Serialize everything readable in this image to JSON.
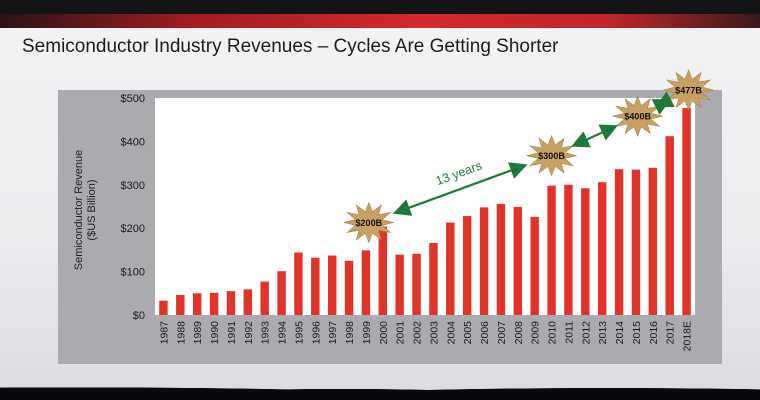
{
  "slide": {
    "title": "Semiconductor Industry Revenues – Cycles Are Getting Shorter"
  },
  "chart_data": {
    "type": "bar",
    "ylabel": "Semiconductor Revenue\n($US Billion)",
    "ylim": [
      0,
      500
    ],
    "y_ticks": [
      "$0",
      "$100",
      "$200",
      "$300",
      "$400",
      "$500"
    ],
    "grid": false,
    "bar_color": "#e0342b",
    "categories": [
      "1987",
      "1988",
      "1989",
      "1990",
      "1991",
      "1992",
      "1993",
      "1994",
      "1995",
      "1996",
      "1997",
      "1998",
      "1999",
      "2000",
      "2001",
      "2002",
      "2003",
      "2004",
      "2005",
      "2006",
      "2007",
      "2008",
      "2009",
      "2010",
      "2011",
      "2012",
      "2013",
      "2014",
      "2015",
      "2016",
      "2017",
      "2018E"
    ],
    "values": [
      33,
      46,
      50,
      51,
      55,
      59,
      77,
      101,
      144,
      132,
      137,
      125,
      149,
      204,
      139,
      141,
      166,
      213,
      228,
      248,
      256,
      249,
      226,
      298,
      300,
      292,
      306,
      336,
      335,
      339,
      412,
      477
    ],
    "callouts": [
      {
        "label": "$200B",
        "category": "2000"
      },
      {
        "label": "$300B",
        "category": "2010"
      },
      {
        "label": "$400B",
        "category": "2017"
      },
      {
        "label": "$477B",
        "category": "2018E"
      }
    ],
    "annotation": {
      "text": "13 years",
      "color": "#1f7a3a"
    }
  }
}
